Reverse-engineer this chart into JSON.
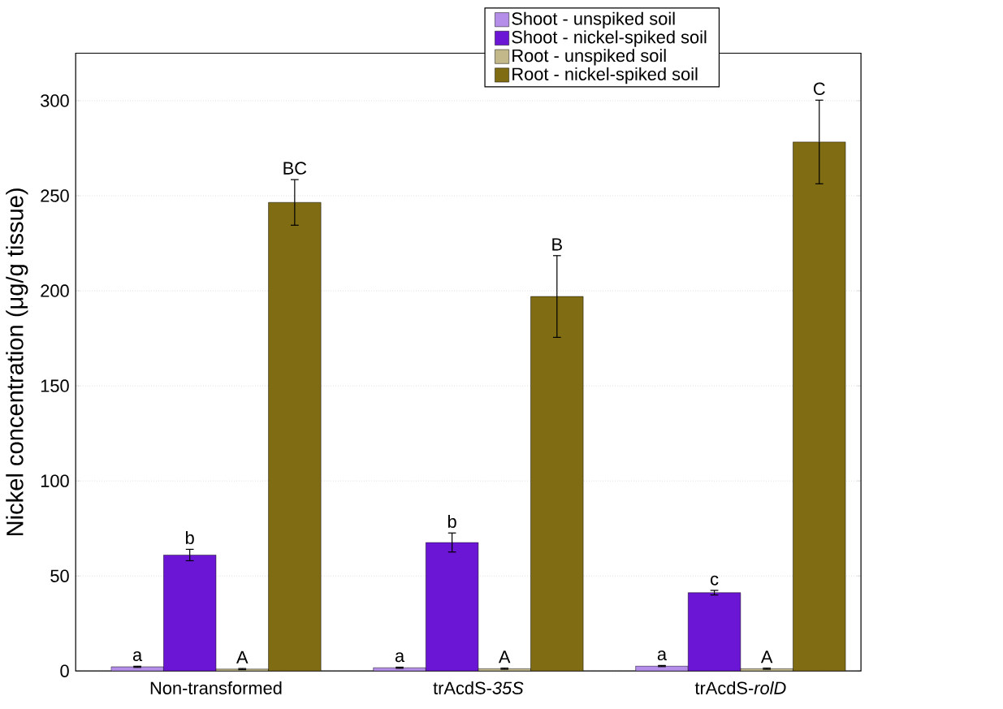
{
  "chart_data": {
    "type": "bar",
    "categories": [
      "Non-transformed",
      "trAcdS-*35S*",
      "trAcdS-*rolD*"
    ],
    "ylabel": "Nickel concentration (μg/g tissue)",
    "ylim": [
      0,
      325
    ],
    "yticks": [
      0,
      50,
      100,
      150,
      200,
      250,
      300
    ],
    "grid": "y",
    "legend": "top right",
    "series": [
      {
        "name": "Shoot - unspiked soil",
        "color": "#b48ee8",
        "values": [
          2.2,
          1.7,
          2.6
        ],
        "errors": [
          0.3,
          0.3,
          0.3
        ],
        "value_labels": [
          "a",
          "a",
          "a"
        ]
      },
      {
        "name": "Shoot - nickel-spiked soil",
        "color": "#6a16d4",
        "values": [
          61,
          67.6,
          41.2
        ],
        "errors": [
          3,
          5,
          1.2
        ],
        "value_labels": [
          "b",
          "b",
          "c"
        ]
      },
      {
        "name": "Root - unspiked soil",
        "color": "#c2b88a",
        "values": [
          1.0,
          1.2,
          1.2
        ],
        "errors": [
          0.3,
          0.3,
          0.3
        ],
        "value_labels": [
          "A",
          "A",
          "A"
        ]
      },
      {
        "name": "Root - nickel-spiked soil",
        "color": "#7f6c13",
        "values": [
          246.5,
          197,
          278.3
        ],
        "errors": [
          12,
          21.5,
          22
        ],
        "value_labels": [
          "BC",
          "B",
          "C"
        ]
      }
    ]
  }
}
